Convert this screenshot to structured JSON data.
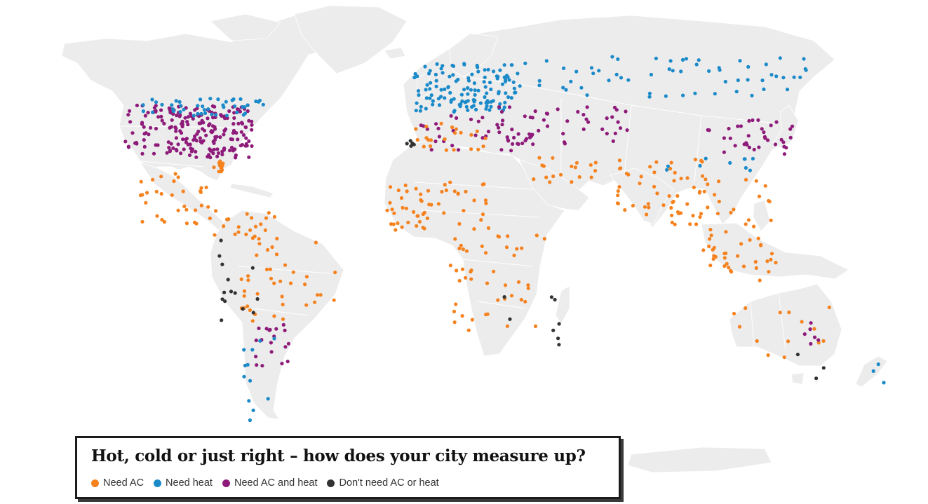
{
  "map": {
    "colors": {
      "land": "#ececec",
      "border": "#ffffff",
      "need_ac": "#f5821f",
      "need_heat": "#1b8ac9",
      "need_ac_and_heat": "#8e1b7a",
      "dont_need": "#333333"
    }
  },
  "legend": {
    "title": "Hot, cold or just right – how does your city measure up?",
    "items": [
      {
        "key": "ac",
        "label": "Need AC",
        "color": "#f5821f"
      },
      {
        "key": "heat",
        "label": "Need heat",
        "color": "#1b8ac9"
      },
      {
        "key": "both",
        "label": "Need AC and heat",
        "color": "#8e1b7a"
      },
      {
        "key": "none",
        "label": "Don't need AC or heat",
        "color": "#333333"
      }
    ]
  }
}
